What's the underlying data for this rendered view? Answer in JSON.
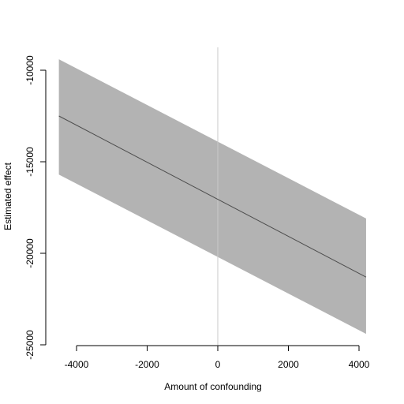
{
  "chart_data": {
    "type": "line",
    "title": "",
    "xlabel": "Amount of confounding",
    "ylabel": "Estimated effect",
    "xlim": [
      -4500,
      4500
    ],
    "ylim": [
      -25000,
      -10000
    ],
    "xticks": [
      -4000,
      -2000,
      0,
      2000,
      4000
    ],
    "xtick_labels": [
      "-4000",
      "-2000",
      "0",
      "2000",
      "4000"
    ],
    "yticks": [
      -25000,
      -20000,
      -15000,
      -10000
    ],
    "ytick_labels": [
      "-25000",
      "-20000",
      "-15000",
      "-10000"
    ],
    "reference_line": {
      "x": 0
    },
    "grid": false,
    "series": [
      {
        "x": [
          -4500,
          4200
        ],
        "y": [
          -12500,
          -21300
        ],
        "lower": [
          -15700,
          -24400
        ],
        "upper": [
          -9400,
          -18100
        ]
      }
    ],
    "colors": {
      "band": "#b3b3b3",
      "line": "#4d4d4d",
      "reference": "#c8c8c8",
      "axis": "#000000"
    }
  }
}
